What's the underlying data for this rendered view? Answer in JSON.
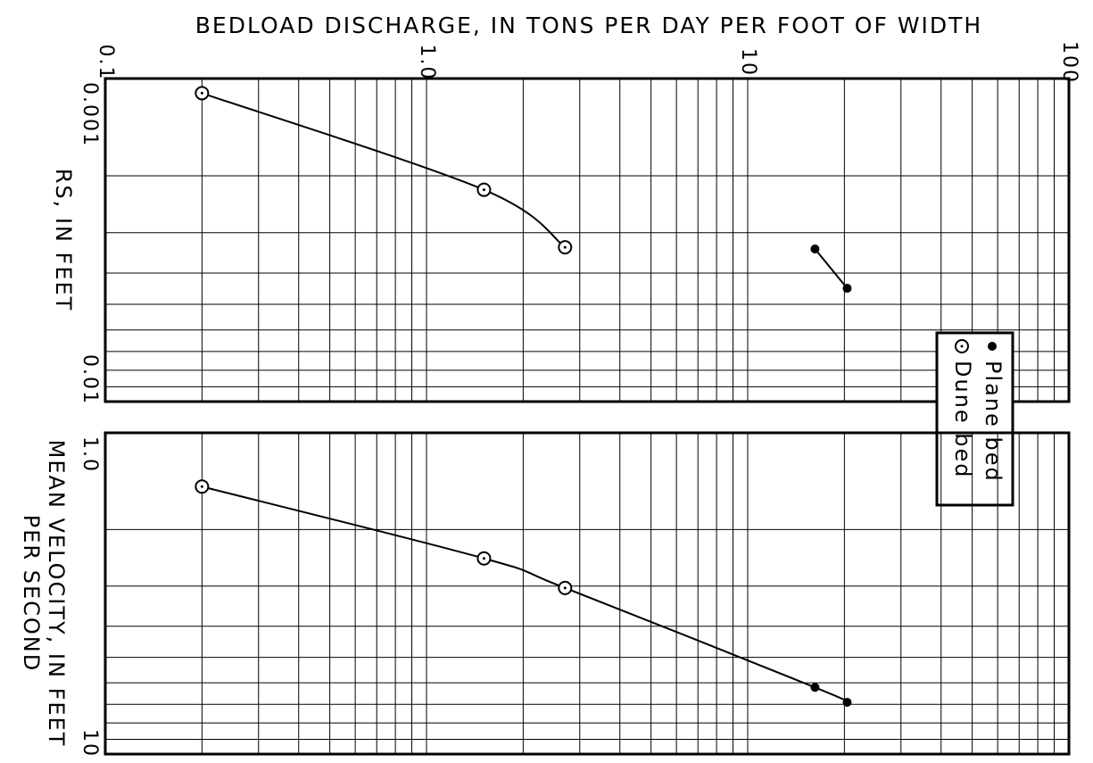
{
  "chart_data": [
    {
      "type": "line",
      "title": "BEDLOAD DISCHARGE, IN TONS PER DAY PER FOOT OF WIDTH",
      "ylabel": [
        "RS, IN FEET"
      ],
      "xscale": "log",
      "yscale": "log",
      "grid": true,
      "minor_grid": true,
      "xlim": [
        0.1,
        100
      ],
      "xticks": [
        0.1,
        {
          "value": 1,
          "label": "1.0"
        },
        10,
        100
      ],
      "ylim": [
        0.001,
        0.01
      ],
      "yticks": [
        0.001,
        0.01
      ],
      "y_inverted": true,
      "legend": "right",
      "series": [
        {
          "name": "Plane bed",
          "marker": "filled",
          "color": "#000000",
          "x": [
            16.2,
            20.4
          ],
          "values": [
            0.00337,
            0.00446
          ]
        },
        {
          "name": "Dune bed",
          "marker": "open",
          "color": "#000000",
          "x": [
            0.2,
            1.51,
            2.7
          ],
          "values": [
            0.00111,
            0.00221,
            0.00333
          ]
        }
      ]
    },
    {
      "type": "line",
      "ylabel": [
        "MEAN VELOCITY, IN FEET",
        "PER SECOND"
      ],
      "xscale": "log",
      "yscale": "log",
      "grid": true,
      "minor_grid": true,
      "joined": true,
      "ylim": [
        {
          "value": 1,
          "label": "1.0"
        },
        10
      ],
      "yticks": [
        {
          "value": 1,
          "label": "1.0"
        },
        10
      ],
      "y_inverted": true,
      "series": [
        {
          "marker": "open",
          "color": "#000000",
          "x": [
            0.2,
            1.51,
            2.7
          ],
          "values": [
            1.47,
            2.46,
            3.04
          ]
        },
        {
          "marker": "filled",
          "color": "#000000",
          "x": [
            16.2,
            20.4
          ],
          "values": [
            6.2,
            6.9
          ]
        }
      ]
    }
  ]
}
